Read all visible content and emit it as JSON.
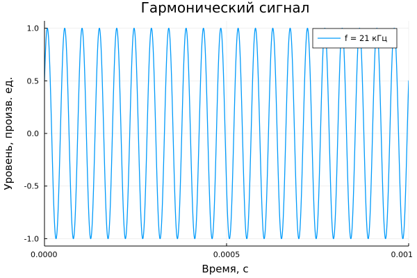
{
  "chart_data": {
    "type": "line",
    "title": "Гармонический сигнал",
    "xlabel": "Время, с",
    "ylabel": "Уровень, произв. ед.",
    "xlim": [
      0,
      0.001
    ],
    "ylim": [
      -1.07,
      1.07
    ],
    "x_ticks": [
      0,
      0.0005,
      0.001
    ],
    "x_tick_labels": [
      "0.0000",
      "0.0005",
      "0.001"
    ],
    "y_ticks": [
      -1.0,
      -0.5,
      0.0,
      0.5,
      1.0
    ],
    "y_tick_labels": [
      "-1.0",
      "-0.5",
      "0.0",
      "0.5",
      "1.0"
    ],
    "grid": true,
    "legend_position": "top-right",
    "series": [
      {
        "name": "f = 21 кГц",
        "function": "sine",
        "frequency_hz": 21000,
        "amplitude": 1.0,
        "phase_offset_s": 4e-06,
        "color": "#009AFA"
      }
    ]
  }
}
